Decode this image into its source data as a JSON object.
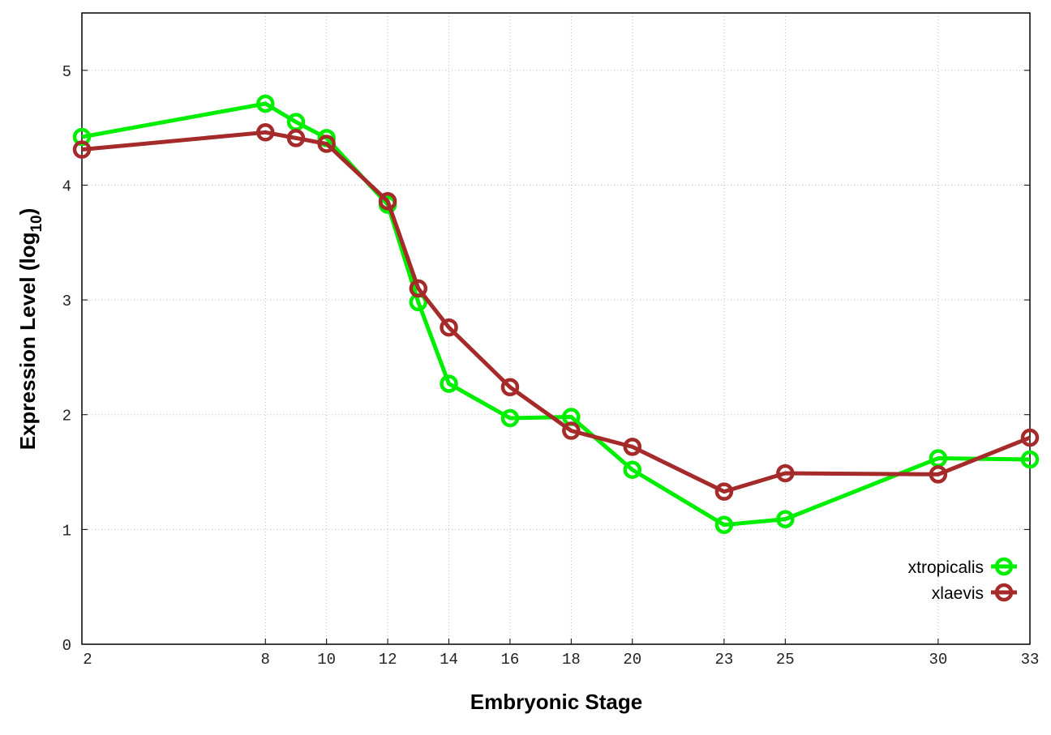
{
  "chart_data": {
    "type": "line",
    "title": "",
    "xlabel": "Embryonic Stage",
    "ylabel": {
      "prefix": "Expression Level (log",
      "sub": "10",
      "suffix": ")"
    },
    "xlim": [
      2,
      33
    ],
    "ylim": [
      0,
      5.5
    ],
    "x_ticks": [
      2,
      8,
      10,
      12,
      14,
      16,
      18,
      20,
      23,
      25,
      30,
      33
    ],
    "y_ticks": [
      0,
      1,
      2,
      3,
      4,
      5
    ],
    "grid": true,
    "legend_position": "bottom-right",
    "x": [
      2,
      8,
      9,
      10,
      12,
      13,
      14,
      16,
      18,
      20,
      23,
      25,
      30,
      33
    ],
    "series": [
      {
        "name": "xtropicalis",
        "color": "#00ee00",
        "values": [
          4.42,
          4.71,
          4.55,
          4.41,
          3.83,
          2.98,
          2.27,
          1.97,
          1.98,
          1.52,
          1.04,
          1.09,
          1.62,
          1.61
        ]
      },
      {
        "name": "xlaevis",
        "color": "#a52a2a",
        "values": [
          4.31,
          4.46,
          4.41,
          4.36,
          3.86,
          3.1,
          2.76,
          2.24,
          1.86,
          1.72,
          1.33,
          1.49,
          1.48,
          1.8
        ]
      }
    ]
  }
}
